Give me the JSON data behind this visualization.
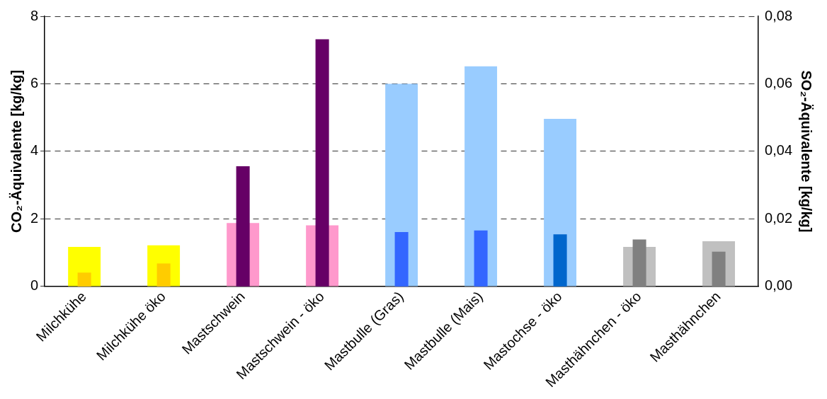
{
  "chart_data": {
    "type": "bar",
    "categories": [
      "Milchkühe",
      "Milchkühe öko",
      "Mastschwein",
      "Mastschwein - öko",
      "Mastbulle (Gras)",
      "Mastbulle (Mais)",
      "Mastochse - öko",
      "Masthähnchen - öko",
      "Masthähnchen"
    ],
    "ylabel": "CO₂-Äquivalente [kg/kg]",
    "y2label": "SO₂-Äquivalente [kg/kg]",
    "series": [
      {
        "axis": "y",
        "colors": [
          "#ffff00",
          "#ffff00",
          "#ff99cc",
          "#ff99cc",
          "#99ccff",
          "#99ccff",
          "#99ccff",
          "#c0c0c0",
          "#c0c0c0"
        ],
        "values": [
          1.17,
          1.22,
          1.88,
          1.81,
          6.0,
          6.52,
          4.96,
          1.17,
          1.34
        ]
      },
      {
        "axis": "y2",
        "colors": [
          "#ffcc00",
          "#ffcc00",
          "#660066",
          "#660066",
          "#3366ff",
          "#3366ff",
          "#0066cc",
          "#808080",
          "#808080"
        ],
        "values": [
          0.0041,
          0.0068,
          0.0356,
          0.0732,
          0.0161,
          0.0166,
          0.0154,
          0.0139,
          0.0103
        ]
      }
    ],
    "ylim": [
      0,
      8
    ],
    "yticks": [
      0,
      2,
      4,
      6,
      8
    ],
    "y2lim": [
      0,
      0.08
    ],
    "y2ticks": [
      {
        "value": 0,
        "label": "0,00"
      },
      {
        "value": 0.02,
        "label": "0,02"
      },
      {
        "value": 0.04,
        "label": "0,04"
      },
      {
        "value": 0.06,
        "label": "0,06"
      },
      {
        "value": 0.08,
        "label": "0,08"
      }
    ],
    "grid": "y",
    "legend": false
  }
}
